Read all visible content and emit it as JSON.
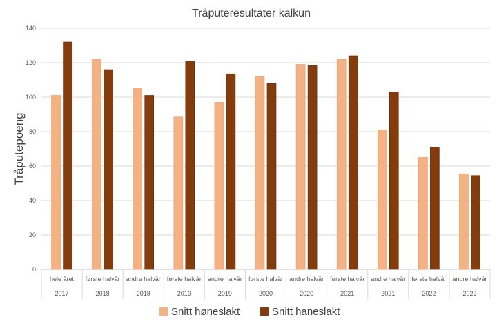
{
  "chart_data": {
    "type": "bar",
    "title": "Tråputeresultater kalkun",
    "xlabel": "",
    "ylabel": "Tråputepoeng",
    "ylim": [
      0,
      140
    ],
    "yticks": [
      0,
      20,
      40,
      60,
      80,
      100,
      120,
      140
    ],
    "grid": true,
    "legend_position": "bottom",
    "categories": [
      {
        "period": "hele året",
        "year": "2017"
      },
      {
        "period": "første halvår",
        "year": "2018"
      },
      {
        "period": "andre halvår",
        "year": "2018"
      },
      {
        "period": "første halvår",
        "year": "2019"
      },
      {
        "period": "andre halvår",
        "year": "2019"
      },
      {
        "period": "første halvår",
        "year": "2020"
      },
      {
        "period": "andre halvår",
        "year": "2020"
      },
      {
        "period": "første halvår",
        "year": "2021"
      },
      {
        "period": "andre halvår",
        "year": "2021"
      },
      {
        "period": "første halvår",
        "year": "2022"
      },
      {
        "period": "andre halvår",
        "year": "2022"
      }
    ],
    "series": [
      {
        "name": "Snitt høneslakt",
        "color": "#f4b183",
        "values": [
          101,
          122,
          105,
          88.5,
          97,
          112,
          119,
          122,
          81,
          65,
          55.5
        ]
      },
      {
        "name": "Snitt haneslakt",
        "color": "#843c0c",
        "values": [
          132,
          116,
          101,
          121,
          113.5,
          108,
          118.5,
          124,
          103,
          71,
          54.5
        ]
      }
    ]
  }
}
